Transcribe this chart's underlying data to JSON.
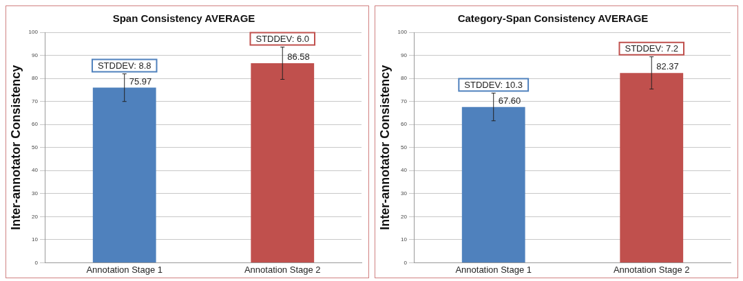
{
  "chart_data": [
    {
      "type": "bar",
      "title": "Span Consistency AVERAGE",
      "ylabel": "Inter-annotator Consistency",
      "categories": [
        "Annotation Stage 1",
        "Annotation Stage 2"
      ],
      "values": [
        75.97,
        86.58
      ],
      "value_labels": [
        "75.97",
        "86.58"
      ],
      "errors": [
        6,
        7
      ],
      "colors": [
        "#4f81bd",
        "#c0504d"
      ],
      "ylim": [
        0,
        100
      ],
      "yticks": [
        0,
        10,
        20,
        30,
        40,
        50,
        60,
        70,
        80,
        90,
        100
      ],
      "grid": "y",
      "annotations": [
        "STDDEV: 8.8",
        "STDDEV: 6.0"
      ]
    },
    {
      "type": "bar",
      "title": "Category-Span Consistency AVERAGE",
      "ylabel": "Inter-annotator Consistency",
      "categories": [
        "Annotation Stage 1",
        "Annotation Stage 2"
      ],
      "values": [
        67.6,
        82.37
      ],
      "value_labels": [
        "67.60",
        "82.37"
      ],
      "errors": [
        6,
        7
      ],
      "colors": [
        "#4f81bd",
        "#c0504d"
      ],
      "ylim": [
        0,
        100
      ],
      "yticks": [
        0,
        10,
        20,
        30,
        40,
        50,
        60,
        70,
        80,
        90,
        100
      ],
      "grid": "y",
      "annotations": [
        "STDDEV: 10.3",
        "STDDEV: 7.2"
      ]
    }
  ]
}
